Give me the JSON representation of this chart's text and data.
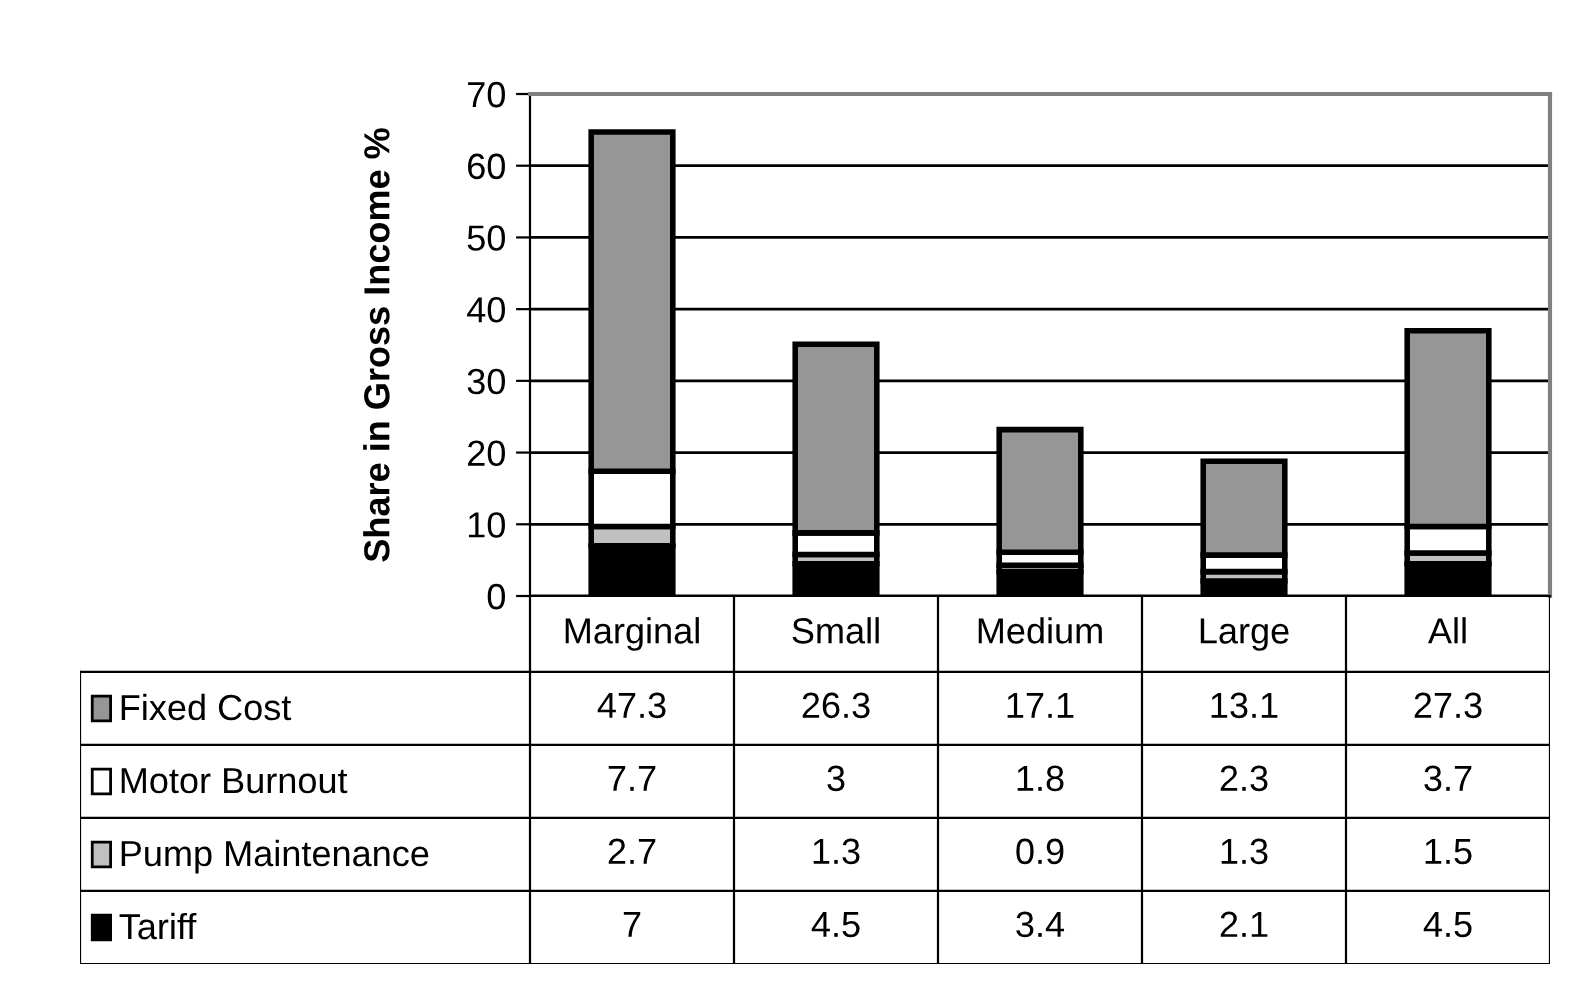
{
  "chart_data": {
    "type": "bar",
    "stacked": true,
    "ylabel": "Share in Gross Income %",
    "categories": [
      "Marginal",
      "Small",
      "Medium",
      "Large",
      "All"
    ],
    "series": [
      {
        "name": "Tariff",
        "color": "#000000",
        "values": [
          7,
          4.5,
          3.4,
          2.1,
          4.5
        ]
      },
      {
        "name": "Pump Maintenance",
        "color": "#c0c0c0",
        "values": [
          2.7,
          1.3,
          0.9,
          1.3,
          1.5
        ]
      },
      {
        "name": "Motor Burnout",
        "color": "#ffffff",
        "values": [
          7.7,
          3,
          1.8,
          2.3,
          3.7
        ]
      },
      {
        "name": "Fixed Cost",
        "color": "#969696",
        "values": [
          47.3,
          26.3,
          17.1,
          13.1,
          27.3
        ]
      }
    ],
    "ylim": [
      0,
      70
    ],
    "yticks": [
      0,
      10,
      20,
      30,
      40,
      50,
      60,
      70
    ],
    "grid": "y",
    "legend": "bottom",
    "data_labels": true
  }
}
